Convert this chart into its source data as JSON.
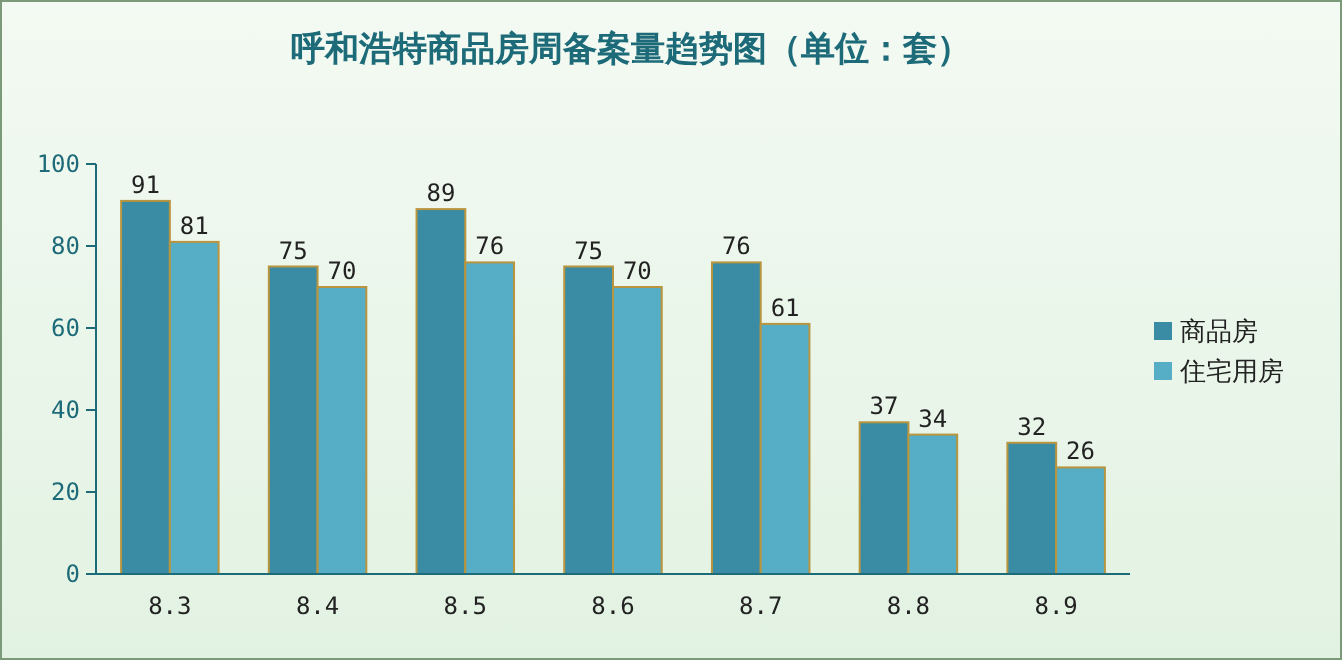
{
  "chart_data": {
    "type": "bar",
    "title": "呼和浩特商品房周备案量趋势图（单位：套）",
    "categories": [
      "8.3",
      "8.4",
      "8.5",
      "8.6",
      "8.7",
      "8.8",
      "8.9"
    ],
    "series": [
      {
        "name": "商品房",
        "color": "#3a8ca4",
        "values": [
          91,
          75,
          89,
          75,
          76,
          37,
          32
        ]
      },
      {
        "name": "住宅用房",
        "color": "#55adc6",
        "values": [
          81,
          70,
          76,
          70,
          61,
          34,
          26
        ]
      }
    ],
    "ylim": [
      0,
      100
    ],
    "yticks": [
      0,
      20,
      40,
      60,
      80,
      100
    ],
    "grid": false,
    "legend": "right",
    "data_labels": true
  }
}
